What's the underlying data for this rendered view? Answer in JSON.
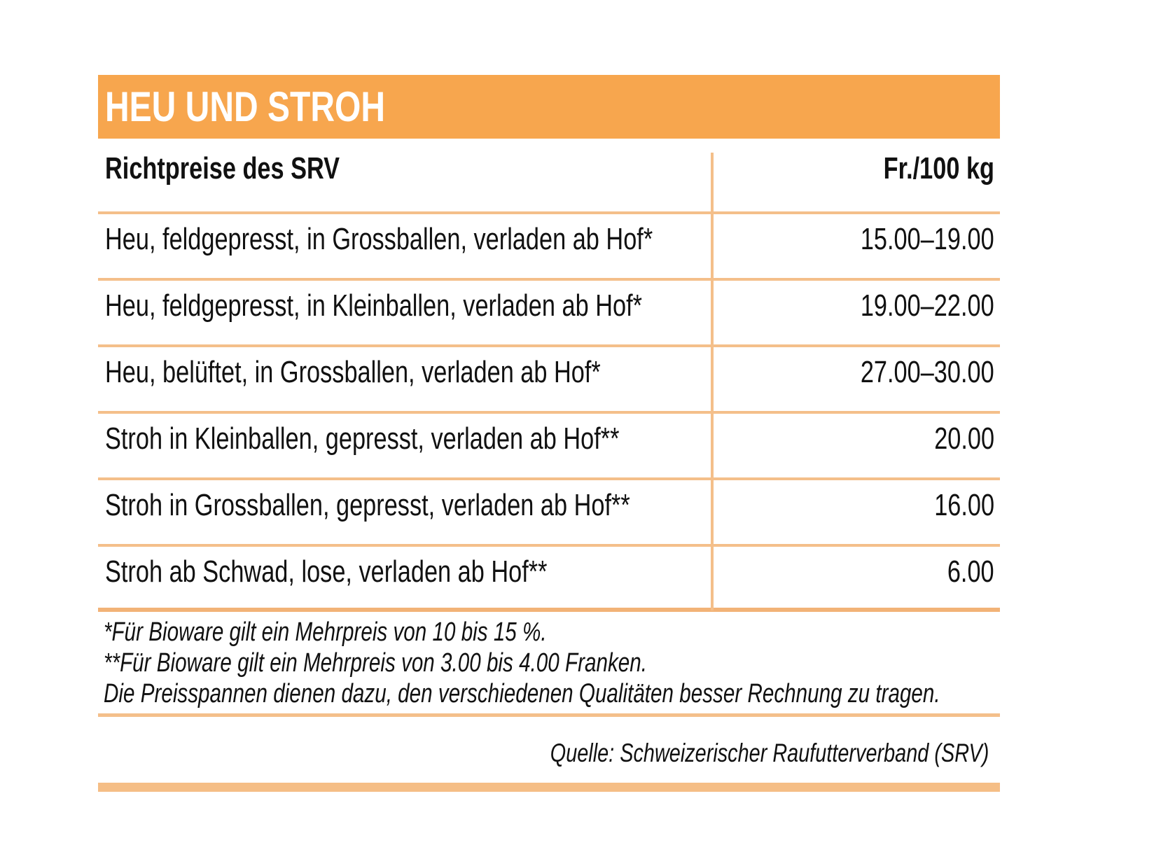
{
  "title": "HEU UND STROH",
  "table": {
    "header": {
      "label": "Richtpreise des SRV",
      "unit": "Fr./100 kg"
    },
    "rows": [
      {
        "label": "Heu, feldgepresst, in Grossballen, verladen ab Hof*",
        "price": "15.00–19.00"
      },
      {
        "label": "Heu, feldgepresst, in Kleinballen, verladen ab Hof*",
        "price": "19.00–22.00"
      },
      {
        "label": "Heu, belüftet, in Grossballen, verladen ab Hof*",
        "price": "27.00–30.00"
      },
      {
        "label": "Stroh in Kleinballen, gepresst, verladen ab Hof**",
        "price": "20.00"
      },
      {
        "label": "Stroh in Grossballen, gepresst, verladen ab Hof**",
        "price": "16.00"
      },
      {
        "label": "Stroh ab Schwad, lose, verladen ab Hof**",
        "price": "6.00"
      }
    ]
  },
  "footnotes": [
    "*Für Bioware gilt ein Mehrpreis von 10 bis 15 %.",
    "**Für Bioware gilt ein Mehrpreis von 3.00 bis 4.00 Franken.",
    "Die Preisspannen dienen dazu, den verschiedenen Qualitäten besser Rechnung zu tragen."
  ],
  "source": "Quelle: Schweizerischer Raufutterverband (SRV)",
  "colors": {
    "header_bar": "#F7A64E",
    "rule": "#F4BF8A",
    "strong_rule": "#F2B377",
    "bottom_bar": "#F5BE86",
    "text": "#111111"
  },
  "chart_data": {
    "type": "table",
    "title": "HEU UND STROH",
    "columns": [
      "Richtpreise des SRV",
      "Fr./100 kg"
    ],
    "rows": [
      [
        "Heu, feldgepresst, in Grossballen, verladen ab Hof*",
        "15.00–19.00"
      ],
      [
        "Heu, feldgepresst, in Kleinballen, verladen ab Hof*",
        "19.00–22.00"
      ],
      [
        "Heu, belüftet, in Grossballen, verladen ab Hof*",
        "27.00–30.00"
      ],
      [
        "Stroh in Kleinballen, gepresst, verladen ab Hof**",
        "20.00"
      ],
      [
        "Stroh in Grossballen, gepresst, verladen ab Hof**",
        "16.00"
      ],
      [
        "Stroh ab Schwad, lose, verladen ab Hof**",
        "6.00"
      ],
      [
        "Quelle",
        "Schweizerischer Raufutterverband (SRV)"
      ]
    ],
    "price_ranges_fr_per_100kg": [
      {
        "item": "Heu feldgepresst Grossballen",
        "min": 15.0,
        "max": 19.0
      },
      {
        "item": "Heu feldgepresst Kleinballen",
        "min": 19.0,
        "max": 22.0
      },
      {
        "item": "Heu belüftet Grossballen",
        "min": 27.0,
        "max": 30.0
      },
      {
        "item": "Stroh Kleinballen gepresst",
        "min": 20.0,
        "max": 20.0
      },
      {
        "item": "Stroh Grossballen gepresst",
        "min": 16.0,
        "max": 16.0
      },
      {
        "item": "Stroh ab Schwad lose",
        "min": 6.0,
        "max": 6.0
      }
    ]
  }
}
